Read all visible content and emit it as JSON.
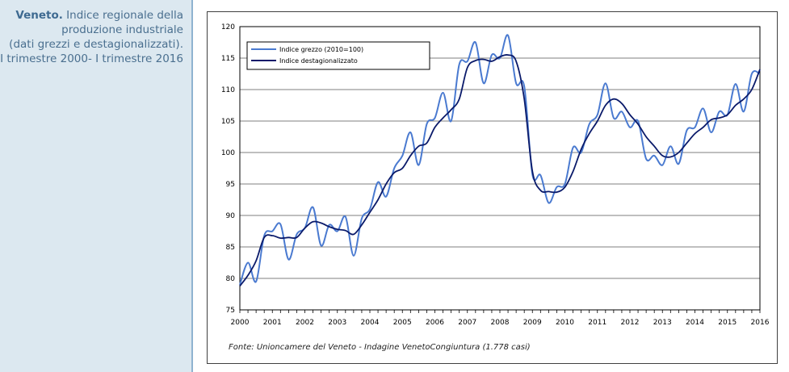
{
  "caption": {
    "bold": "Veneto.",
    "line1": "Indice regionale della",
    "line2": "produzione industriale",
    "line3": "(dati grezzi e destagionalizzati).",
    "line4": "I trimestre 2000- I trimestre 2016"
  },
  "source": "Fonte: Unioncamere del Veneto - Indagine VenetoCongiuntura (1.778 casi)",
  "colors": {
    "grezzo": "#4a7ad0",
    "destag": "#0a1a6a",
    "panel": "#dce8f0"
  },
  "chart_data": {
    "type": "line",
    "title": "",
    "xlabel": "",
    "ylabel": "",
    "ylim": [
      75,
      120
    ],
    "yticks": [
      75,
      80,
      85,
      90,
      95,
      100,
      105,
      110,
      115,
      120
    ],
    "xlim": [
      2000,
      2016
    ],
    "xtick_labels": [
      "2000",
      "2001",
      "2002",
      "2003",
      "2004",
      "2005",
      "2006",
      "2007",
      "2008",
      "2009",
      "2010",
      "2011",
      "2012",
      "2013",
      "2014",
      "2015",
      "2016"
    ],
    "grid": true,
    "legend_position": "top-left",
    "series": [
      {
        "name": "Indice grezzo (2010=100)",
        "x": [
          2000.0,
          2000.25,
          2000.5,
          2000.75,
          2001.0,
          2001.25,
          2001.5,
          2001.75,
          2002.0,
          2002.25,
          2002.5,
          2002.75,
          2003.0,
          2003.25,
          2003.5,
          2003.75,
          2004.0,
          2004.25,
          2004.5,
          2004.75,
          2005.0,
          2005.25,
          2005.5,
          2005.75,
          2006.0,
          2006.25,
          2006.5,
          2006.75,
          2007.0,
          2007.25,
          2007.5,
          2007.75,
          2008.0,
          2008.25,
          2008.5,
          2008.75,
          2009.0,
          2009.25,
          2009.5,
          2009.75,
          2010.0,
          2010.25,
          2010.5,
          2010.75,
          2011.0,
          2011.25,
          2011.5,
          2011.75,
          2012.0,
          2012.25,
          2012.5,
          2012.75,
          2013.0,
          2013.25,
          2013.5,
          2013.75,
          2014.0,
          2014.25,
          2014.5,
          2014.75,
          2015.0,
          2015.25,
          2015.5,
          2015.75,
          2016.0
        ],
        "values": [
          79.0,
          82.5,
          79.5,
          86.8,
          87.5,
          88.6,
          83.0,
          87.0,
          88.0,
          91.3,
          85.2,
          88.5,
          87.5,
          89.8,
          83.6,
          89.5,
          91.0,
          95.3,
          93.0,
          97.5,
          99.5,
          103.2,
          98.0,
          104.5,
          105.5,
          109.5,
          105.0,
          114.0,
          114.5,
          117.5,
          111.0,
          115.5,
          115.0,
          118.6,
          111.0,
          110.5,
          96.5,
          96.4,
          92.0,
          94.5,
          95.0,
          100.8,
          100.0,
          104.5,
          106.0,
          111.0,
          105.5,
          106.5,
          104.0,
          105.0,
          99.0,
          99.5,
          98.0,
          101.0,
          98.2,
          103.5,
          104.0,
          107.0,
          103.2,
          106.5,
          106.0,
          110.9,
          106.5,
          112.5,
          112.5
        ]
      },
      {
        "name": "Indice destagionalizzato",
        "x": [
          2000.0,
          2000.25,
          2000.5,
          2000.75,
          2001.0,
          2001.25,
          2001.5,
          2001.75,
          2002.0,
          2002.25,
          2002.5,
          2002.75,
          2003.0,
          2003.25,
          2003.5,
          2003.75,
          2004.0,
          2004.25,
          2004.5,
          2004.75,
          2005.0,
          2005.25,
          2005.5,
          2005.75,
          2006.0,
          2006.25,
          2006.5,
          2006.75,
          2007.0,
          2007.25,
          2007.5,
          2007.75,
          2008.0,
          2008.25,
          2008.5,
          2008.75,
          2009.0,
          2009.25,
          2009.5,
          2009.75,
          2010.0,
          2010.25,
          2010.5,
          2010.75,
          2011.0,
          2011.25,
          2011.5,
          2011.75,
          2012.0,
          2012.25,
          2012.5,
          2012.75,
          2013.0,
          2013.25,
          2013.5,
          2013.75,
          2014.0,
          2014.25,
          2014.5,
          2014.75,
          2015.0,
          2015.25,
          2015.5,
          2015.75,
          2016.0
        ],
        "values": [
          78.8,
          80.5,
          82.8,
          86.5,
          86.8,
          86.4,
          86.5,
          86.5,
          88.0,
          89.0,
          88.8,
          88.2,
          87.8,
          87.6,
          87.0,
          88.5,
          90.5,
          92.5,
          95.0,
          96.8,
          97.5,
          99.5,
          101.0,
          101.5,
          104.0,
          105.5,
          106.8,
          108.5,
          113.5,
          114.6,
          114.8,
          114.5,
          115.2,
          115.5,
          114.5,
          108.5,
          97.0,
          94.0,
          93.8,
          93.7,
          94.5,
          97.0,
          100.5,
          103.0,
          105.0,
          107.5,
          108.5,
          107.8,
          106.0,
          104.5,
          102.5,
          101.0,
          99.5,
          99.3,
          100.0,
          101.5,
          103.0,
          104.0,
          105.2,
          105.5,
          106.0,
          107.5,
          108.5,
          110.0,
          113.2
        ]
      }
    ]
  }
}
